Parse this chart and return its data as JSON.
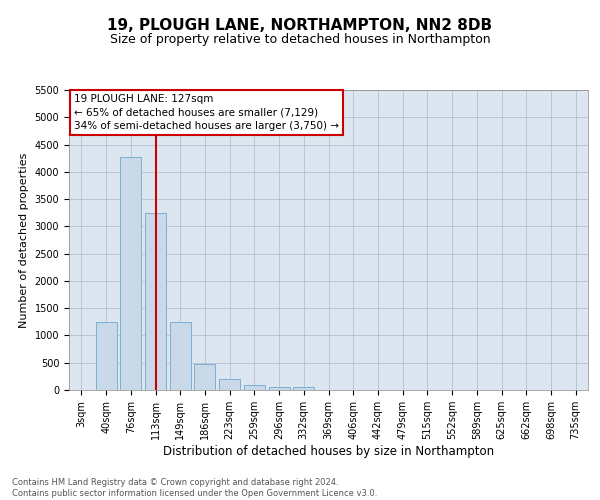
{
  "title1": "19, PLOUGH LANE, NORTHAMPTON, NN2 8DB",
  "title2": "Size of property relative to detached houses in Northampton",
  "xlabel": "Distribution of detached houses by size in Northampton",
  "ylabel": "Number of detached properties",
  "categories": [
    "3sqm",
    "40sqm",
    "76sqm",
    "113sqm",
    "149sqm",
    "186sqm",
    "223sqm",
    "259sqm",
    "296sqm",
    "332sqm",
    "369sqm",
    "406sqm",
    "442sqm",
    "479sqm",
    "515sqm",
    "552sqm",
    "589sqm",
    "625sqm",
    "662sqm",
    "698sqm",
    "735sqm"
  ],
  "values": [
    0,
    1250,
    4270,
    3250,
    1250,
    480,
    210,
    90,
    60,
    50,
    0,
    0,
    0,
    0,
    0,
    0,
    0,
    0,
    0,
    0,
    0
  ],
  "bar_color": "#c9d9e8",
  "bar_edge_color": "#7bafd4",
  "vline_x": 3,
  "vline_color": "#cc0000",
  "annotation_text": "19 PLOUGH LANE: 127sqm\n← 65% of detached houses are smaller (7,129)\n34% of semi-detached houses are larger (3,750) →",
  "annotation_box_color": "#ffffff",
  "annotation_box_edge": "#cc0000",
  "ylim": [
    0,
    5500
  ],
  "yticks": [
    0,
    500,
    1000,
    1500,
    2000,
    2500,
    3000,
    3500,
    4000,
    4500,
    5000,
    5500
  ],
  "background_color": "#dce6f0",
  "footnote": "Contains HM Land Registry data © Crown copyright and database right 2024.\nContains public sector information licensed under the Open Government Licence v3.0.",
  "title1_fontsize": 11,
  "title2_fontsize": 9,
  "xlabel_fontsize": 8.5,
  "ylabel_fontsize": 8,
  "tick_fontsize": 7,
  "annot_fontsize": 7.5
}
